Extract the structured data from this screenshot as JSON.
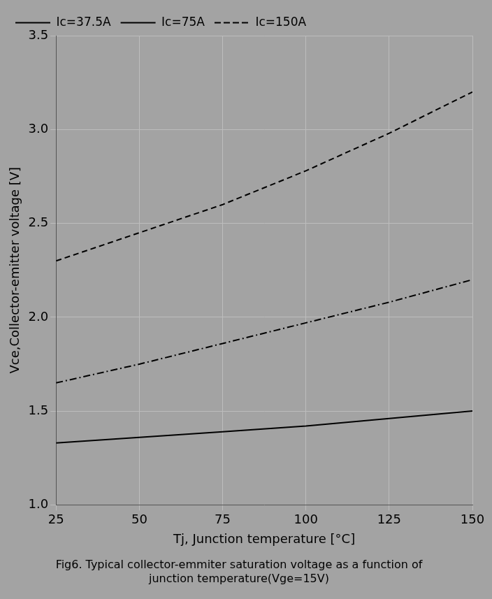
{
  "chart_data": {
    "type": "line",
    "title": "Fig6. Typical collector-emmiter saturation voltage as a function of junction temperature(Vge=15V)",
    "x_label": "Tj, Junction temperature [°C]",
    "y_label": "Vce,Collector-emitter voltage [V]",
    "x": [
      25,
      50,
      75,
      100,
      125,
      150
    ],
    "series": [
      {
        "name": "Ic=37.5A",
        "color": "#000000",
        "line_style": "solid",
        "values": [
          1.33,
          1.36,
          1.39,
          1.42,
          1.46,
          1.5
        ]
      },
      {
        "name": "Ic=75A",
        "color": "#000000",
        "line_style": "dashdot",
        "values": [
          1.65,
          1.75,
          1.86,
          1.97,
          2.08,
          2.2
        ]
      },
      {
        "name": "Ic=150A",
        "color": "#000000",
        "line_style": "dashed",
        "values": [
          2.3,
          2.45,
          2.6,
          2.78,
          2.98,
          3.2
        ]
      }
    ],
    "xlim": [
      25,
      150
    ],
    "xticks": [
      25,
      50,
      75,
      100,
      125,
      150
    ],
    "ylim": [
      1,
      3.5
    ],
    "yticks": [
      1,
      1.5,
      2,
      2.5,
      3,
      3.5
    ],
    "grid": true,
    "legend": "top-left"
  }
}
